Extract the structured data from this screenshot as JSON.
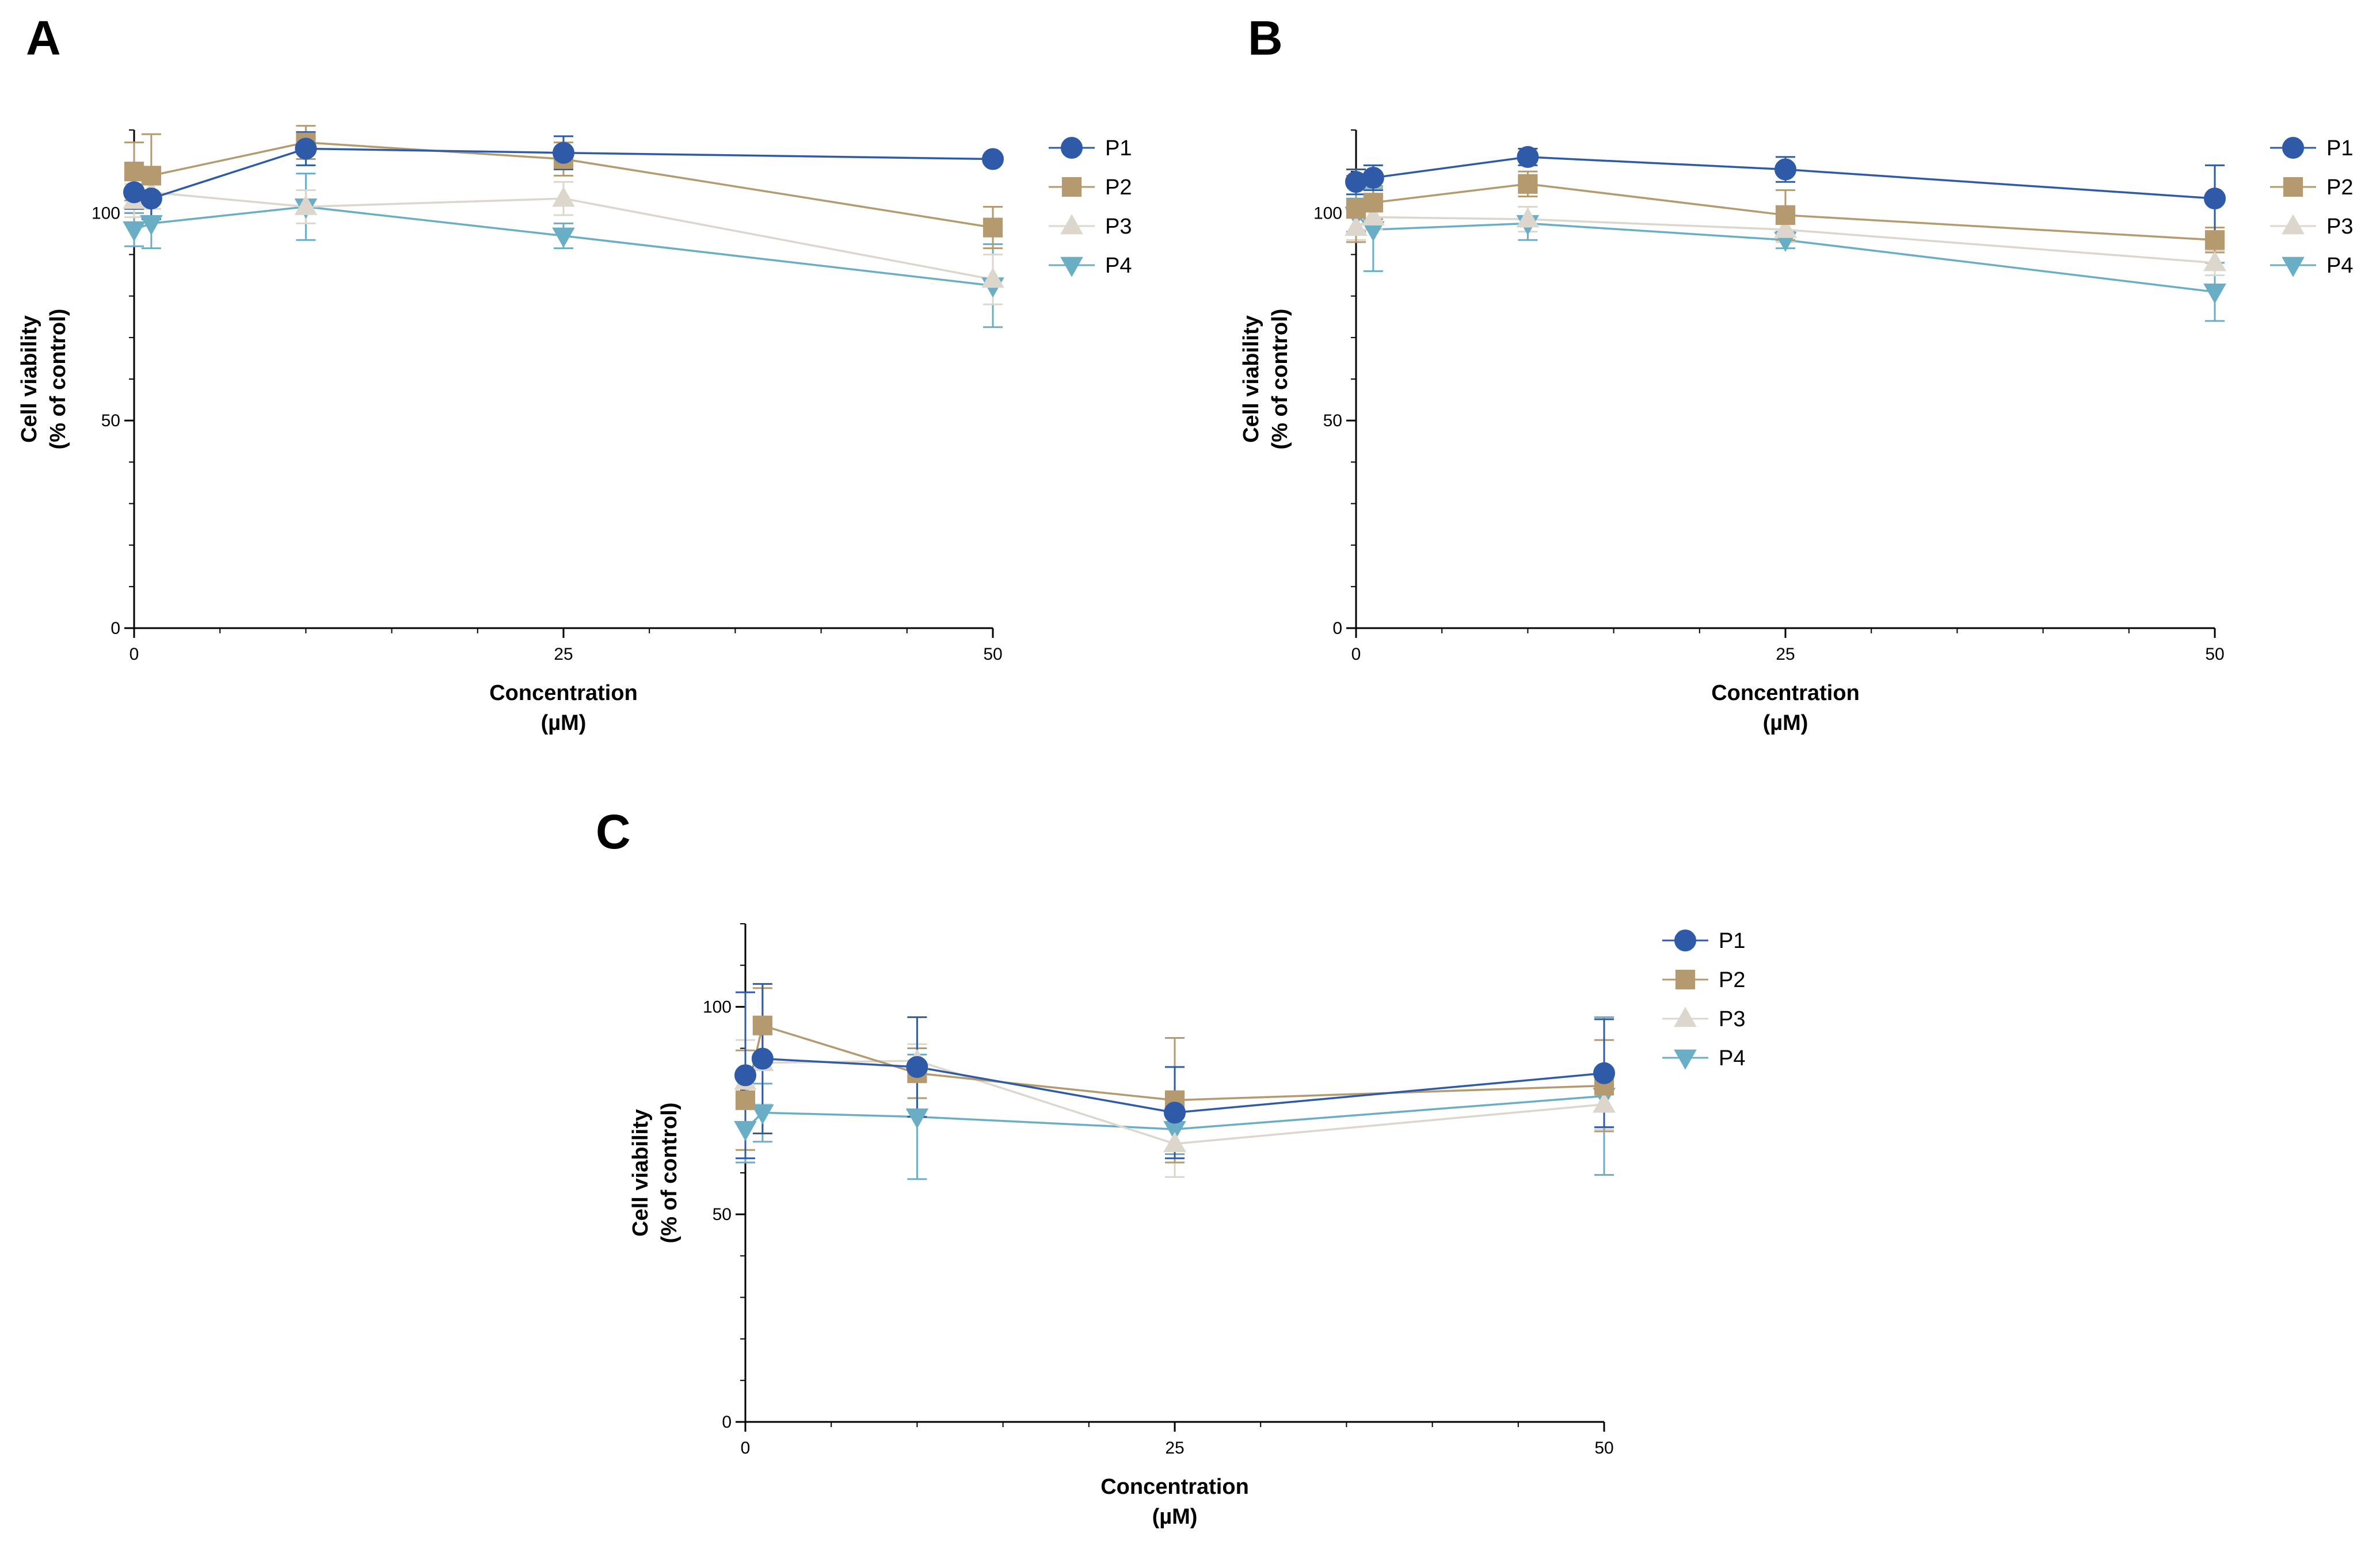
{
  "figure": {
    "background": "#ffffff"
  },
  "series_styles": [
    {
      "name": "P1",
      "color": "#2e5aa8",
      "marker": "circle"
    },
    {
      "name": "P2",
      "color": "#b49a6e",
      "marker": "square"
    },
    {
      "name": "P3",
      "color": "#dcd6cc",
      "marker": "triangle-up"
    },
    {
      "name": "P4",
      "color": "#6aaec6",
      "marker": "triangle-down"
    }
  ],
  "chart_data": [
    {
      "panel": "A",
      "type": "line",
      "xlabel": [
        "Concentration",
        "(µM)"
      ],
      "ylabel": [
        "Cell viability",
        "(% of control)"
      ],
      "xlim": [
        0,
        50
      ],
      "ylim": [
        0,
        120
      ],
      "xticks": [
        0,
        25,
        50
      ],
      "yticks": [
        0,
        50,
        100
      ],
      "x": [
        0,
        1,
        10,
        25,
        50
      ],
      "series": [
        {
          "name": "P1",
          "values": [
            105,
            103.5,
            115.5,
            114.5,
            113
          ],
          "errors": [
            4,
            5,
            4,
            4,
            1
          ]
        },
        {
          "name": "P2",
          "values": [
            110,
            109,
            117,
            113,
            96.5
          ],
          "errors": [
            7,
            10,
            4,
            4,
            5
          ]
        },
        {
          "name": "P3",
          "values": [
            103,
            105,
            101.5,
            103.5,
            84
          ],
          "errors": [
            4,
            4,
            4,
            4,
            6
          ]
        },
        {
          "name": "P4",
          "values": [
            96,
            97.5,
            101.5,
            94.5,
            82.5
          ],
          "errors": [
            4,
            6,
            8,
            3,
            10
          ]
        }
      ],
      "legend": "right"
    },
    {
      "panel": "B",
      "type": "line",
      "xlabel": [
        "Concentration",
        "(µM)"
      ],
      "ylabel": [
        "Cell viability",
        "(% of control)"
      ],
      "xlim": [
        0,
        50
      ],
      "ylim": [
        0,
        120
      ],
      "xticks": [
        0,
        25,
        50
      ],
      "yticks": [
        0,
        50,
        100
      ],
      "x": [
        0,
        1,
        10,
        25,
        50
      ],
      "series": [
        {
          "name": "P1",
          "values": [
            107.5,
            108.5,
            113.5,
            110.5,
            103.5
          ],
          "errors": [
            3,
            3,
            2,
            3,
            8
          ]
        },
        {
          "name": "P2",
          "values": [
            101,
            102.5,
            107,
            99.5,
            93.5
          ],
          "errors": [
            8,
            4,
            3,
            6,
            3
          ]
        },
        {
          "name": "P3",
          "values": [
            96.5,
            99,
            98.5,
            96,
            88
          ],
          "errors": [
            3,
            3,
            3,
            3,
            3
          ]
        },
        {
          "name": "P4",
          "values": [
            99.5,
            96,
            97.5,
            93.5,
            81
          ],
          "errors": [
            4,
            10,
            4,
            2,
            7
          ]
        }
      ],
      "legend": "right"
    },
    {
      "panel": "C",
      "type": "line",
      "xlabel": [
        "Concentration",
        "(µM)"
      ],
      "ylabel": [
        "Cell viability",
        "(% of control)"
      ],
      "xlim": [
        0,
        50
      ],
      "ylim": [
        0,
        120
      ],
      "xticks": [
        0,
        25,
        50
      ],
      "yticks": [
        0,
        50,
        100
      ],
      "x": [
        0,
        1,
        10,
        25,
        50
      ],
      "series": [
        {
          "name": "P1",
          "values": [
            83.5,
            87.5,
            85.5,
            74.5,
            84
          ],
          "errors": [
            20,
            18,
            12,
            11,
            13
          ]
        },
        {
          "name": "P2",
          "values": [
            77.5,
            95.5,
            84,
            77.5,
            81
          ],
          "errors": [
            12,
            9,
            6,
            15,
            11
          ]
        },
        {
          "name": "P3",
          "values": [
            82,
            86.5,
            87,
            67,
            76.5
          ],
          "errors": [
            10,
            10,
            4,
            8,
            6
          ]
        },
        {
          "name": "P4",
          "values": [
            70.5,
            74.5,
            73.5,
            70.5,
            78.5
          ],
          "errors": [
            8,
            7,
            15,
            6,
            19
          ]
        }
      ],
      "legend": "right"
    }
  ]
}
